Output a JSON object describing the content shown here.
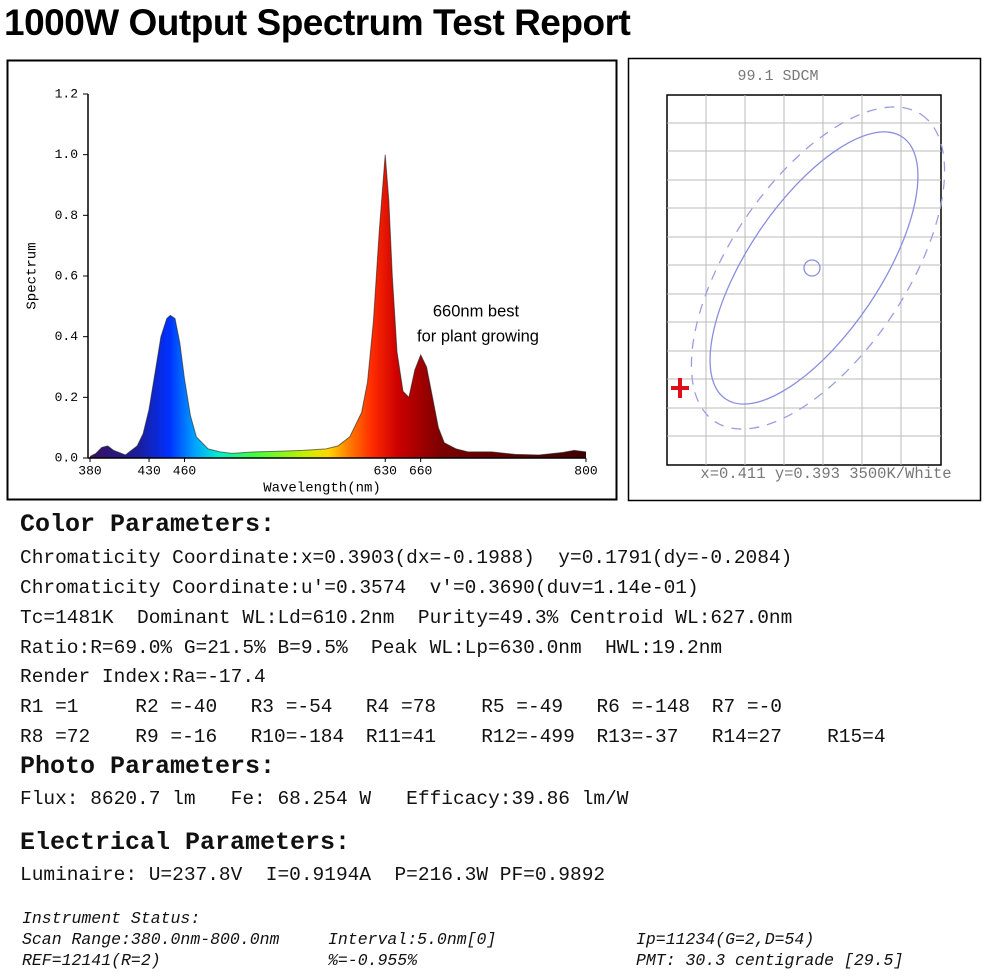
{
  "title": "1000W Output Spectrum Test Report",
  "chart_data": {
    "type": "area",
    "x_label": "Wavelength(nm)",
    "y_label": "Spectrum",
    "annotation": [
      "660nm best",
      "for plant growing"
    ],
    "x": [
      380,
      385,
      390,
      395,
      400,
      410,
      420,
      425,
      430,
      435,
      440,
      445,
      448,
      452,
      456,
      460,
      465,
      470,
      480,
      490,
      500,
      520,
      540,
      560,
      580,
      590,
      600,
      610,
      615,
      620,
      625,
      630,
      633,
      636,
      640,
      645,
      650,
      655,
      660,
      665,
      670,
      675,
      680,
      690,
      700,
      720,
      740,
      760,
      780,
      790,
      800
    ],
    "values": [
      0.005,
      0.015,
      0.035,
      0.04,
      0.025,
      0.01,
      0.04,
      0.08,
      0.16,
      0.28,
      0.4,
      0.46,
      0.47,
      0.46,
      0.38,
      0.26,
      0.14,
      0.07,
      0.03,
      0.02,
      0.015,
      0.02,
      0.022,
      0.025,
      0.03,
      0.04,
      0.07,
      0.15,
      0.25,
      0.45,
      0.75,
      1.0,
      0.85,
      0.6,
      0.35,
      0.22,
      0.2,
      0.29,
      0.34,
      0.3,
      0.2,
      0.1,
      0.05,
      0.03,
      0.02,
      0.02,
      0.012,
      0.01,
      0.018,
      0.025,
      0.02
    ],
    "xlim": [
      380,
      800
    ],
    "xticks": [
      380,
      430,
      460,
      630,
      660,
      800
    ],
    "ylim": [
      0,
      1.2
    ],
    "yticks": [
      {
        "value": 0,
        "label": "0.0"
      },
      0.2,
      0.4,
      0.6,
      0.8,
      {
        "value": 1,
        "label": "1.0"
      },
      1.2
    ],
    "grid": false,
    "color": "#222222"
  },
  "sdcm_panel": {
    "title": "99.1 SDCM",
    "footer": "x=0.411 y=0.393 3500K/White"
  },
  "color_parameters": {
    "heading": "Color Parameters:",
    "lines": [
      "Chromaticity Coordinate:x=0.3903(dx=-0.1988)  y=0.1791(dy=-0.2084)",
      "Chromaticity Coordinate:u'=0.3574  v'=0.3690(duv=1.14e-01)",
      "Tc=1481K  Dominant WL:Ld=610.2nm  Purity=49.3% Centroid WL:627.0nm",
      "Ratio:R=69.0% G=21.5% B=9.5%  Peak WL:Lp=630.0nm  HWL:19.2nm",
      "Render Index:Ra=-17.4"
    ],
    "render_rows": [
      [
        "R1 =1",
        "R2 =-40",
        "R3 =-54",
        "R4 =78",
        "R5 =-49",
        "R6 =-148",
        "R7 =-0"
      ],
      [
        "R8 =72",
        "R9 =-16",
        "R10=-184",
        "R11=41",
        "R12=-499",
        "R13=-37",
        "R14=27",
        "R15=4"
      ]
    ]
  },
  "photo_parameters": {
    "heading": "Photo Parameters:",
    "line": "Flux: 8620.7 lm   Fe: 68.254 W   Efficacy:39.86 lm/W"
  },
  "electrical_parameters": {
    "heading": "Electrical Parameters:",
    "line": "Luminaire: U=237.8V  I=0.9194A  P=216.3W PF=0.9892"
  },
  "instrument_status": {
    "heading": "Instrument Status:",
    "rows": [
      [
        "Scan Range:380.0nm-800.0nm",
        "Interval:5.0nm[0]",
        "Ip=11234(G=2,D=54)"
      ],
      [
        "REF=12141(R=2)",
        "%=-0.955%",
        "PMT: 30.3 centigrade [29.5]"
      ]
    ]
  }
}
